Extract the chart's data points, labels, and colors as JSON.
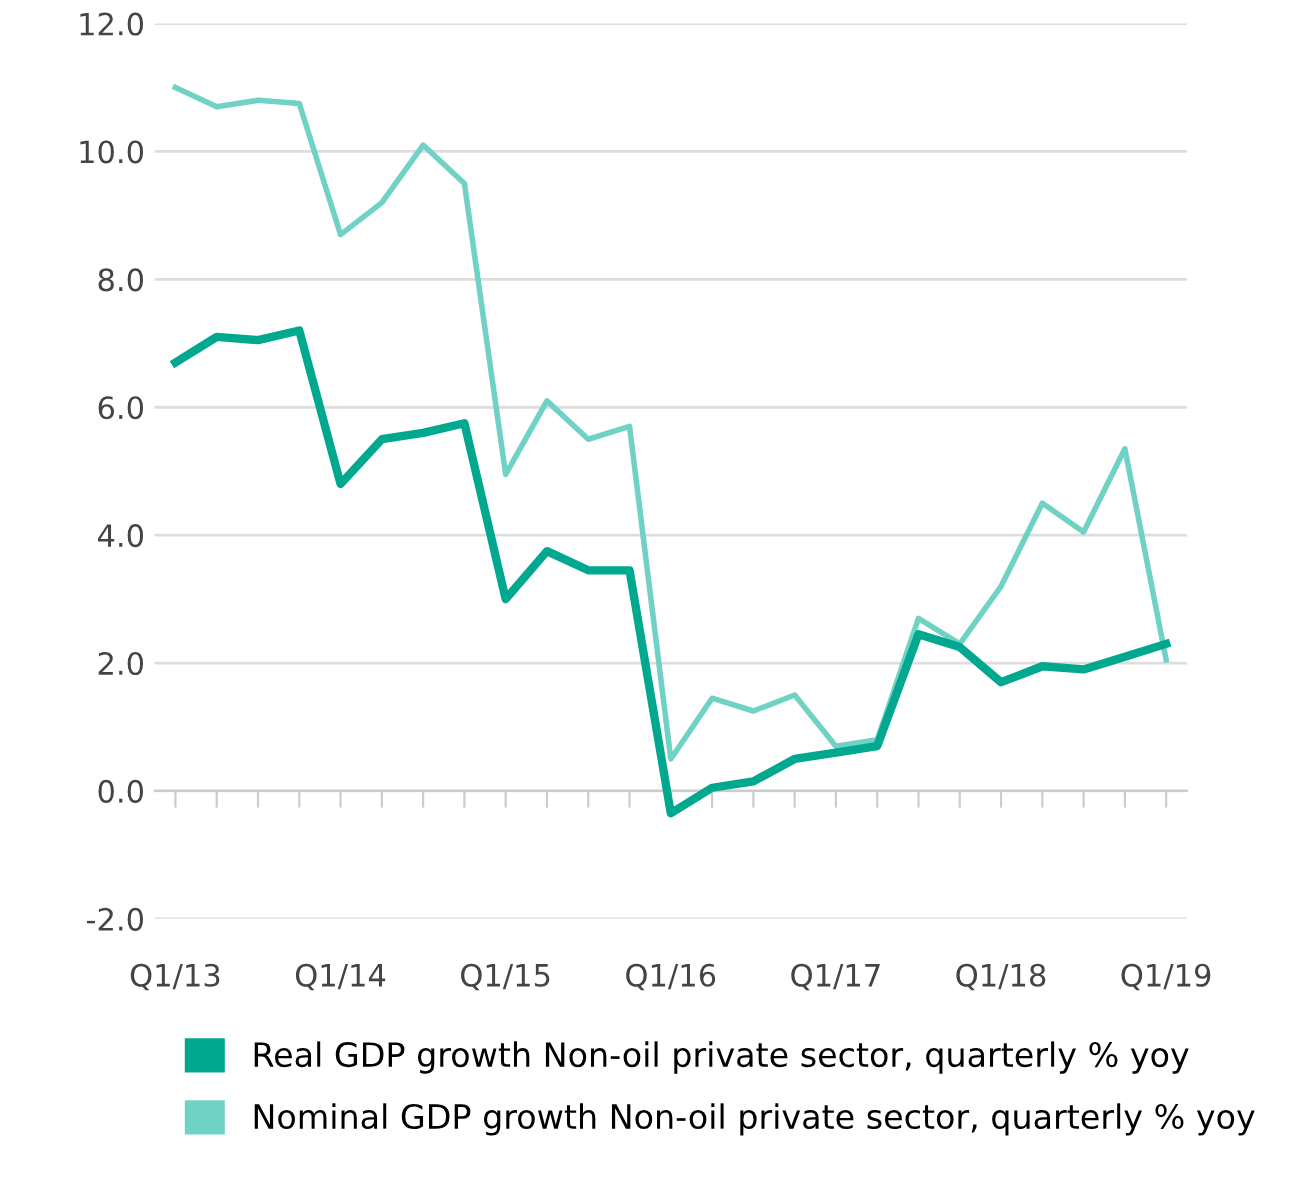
{
  "chart_data": {
    "type": "line",
    "categories": [
      "Q1/13",
      null,
      null,
      null,
      "Q1/14",
      null,
      null,
      null,
      "Q1/15",
      null,
      null,
      null,
      "Q1/16",
      null,
      null,
      null,
      "Q1/17",
      null,
      null,
      null,
      "Q1/18",
      null,
      null,
      null,
      "Q1/19"
    ],
    "series": [
      {
        "name": "Real GDP growth Non-oil private sector, quarterly % yoy",
        "color": "#00a88f",
        "values": [
          6.7,
          7.1,
          7.05,
          7.2,
          4.8,
          5.5,
          5.6,
          5.75,
          3.0,
          3.75,
          3.45,
          3.45,
          -0.35,
          0.05,
          0.15,
          0.5,
          0.6,
          0.7,
          2.45,
          2.25,
          1.7,
          1.95,
          1.9,
          2.1,
          2.3
        ]
      },
      {
        "name": "Nominal GDP growth Non-oil private sector, quarterly % yoy",
        "color": "#6fd2c4",
        "values": [
          11.0,
          10.7,
          10.8,
          10.75,
          8.7,
          9.2,
          10.1,
          9.5,
          4.95,
          6.1,
          5.5,
          5.7,
          0.5,
          1.45,
          1.25,
          1.5,
          0.7,
          0.8,
          2.7,
          2.3,
          3.2,
          4.5,
          4.05,
          5.35,
          2.05
        ]
      }
    ],
    "ylim": [
      -2,
      12
    ],
    "yticks": [
      {
        "value": -2,
        "label": "-2.0"
      },
      {
        "value": 0,
        "label": "0.0"
      },
      {
        "value": 2,
        "label": "2.0"
      },
      {
        "value": 4,
        "label": "4.0"
      },
      {
        "value": 6,
        "label": "6.0"
      },
      {
        "value": 8,
        "label": "8.0"
      },
      {
        "value": 10,
        "label": "10.0"
      },
      {
        "value": 12,
        "label": "12.0"
      }
    ],
    "grid": "y",
    "legend": "bottom"
  }
}
